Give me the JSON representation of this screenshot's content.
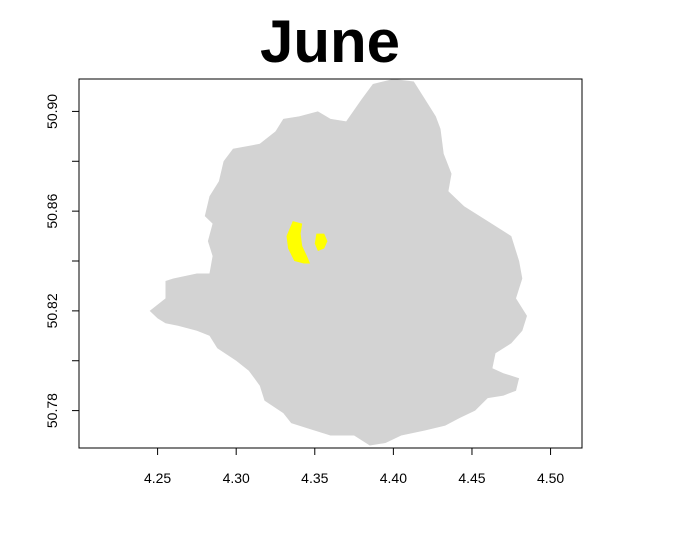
{
  "title": "June",
  "colors": {
    "background": "#ffffff",
    "region_fill": "#d3d3d3",
    "highlight_fill": "#ffff00",
    "axis": "#000000"
  },
  "chart_data": {
    "type": "map",
    "title": "June",
    "xlim": [
      4.2,
      4.52
    ],
    "ylim": [
      50.765,
      50.913
    ],
    "x_ticks": [
      {
        "value": 4.25,
        "label": "4.25"
      },
      {
        "value": 4.3,
        "label": "4.30"
      },
      {
        "value": 4.35,
        "label": "4.35"
      },
      {
        "value": 4.4,
        "label": "4.40"
      },
      {
        "value": 4.45,
        "label": "4.45"
      },
      {
        "value": 4.5,
        "label": "4.50"
      }
    ],
    "y_ticks": [
      {
        "value": 50.78,
        "label": "50.78"
      },
      {
        "value": 50.8,
        "label": ""
      },
      {
        "value": 50.82,
        "label": "50.82"
      },
      {
        "value": 50.84,
        "label": ""
      },
      {
        "value": 50.86,
        "label": "50.86"
      },
      {
        "value": 50.88,
        "label": ""
      },
      {
        "value": 50.9,
        "label": "50.90"
      }
    ],
    "layers": [
      {
        "name": "region",
        "color": "#d3d3d3",
        "coords": [
          [
            4.245,
            50.82
          ],
          [
            4.255,
            50.825
          ],
          [
            4.255,
            50.832
          ],
          [
            4.26,
            50.833
          ],
          [
            4.275,
            50.835
          ],
          [
            4.283,
            50.835
          ],
          [
            4.285,
            50.842
          ],
          [
            4.282,
            50.848
          ],
          [
            4.285,
            50.855
          ],
          [
            4.28,
            50.858
          ],
          [
            4.283,
            50.866
          ],
          [
            4.289,
            50.872
          ],
          [
            4.292,
            50.88
          ],
          [
            4.298,
            50.885
          ],
          [
            4.315,
            50.887
          ],
          [
            4.325,
            50.892
          ],
          [
            4.33,
            50.897
          ],
          [
            4.34,
            50.898
          ],
          [
            4.352,
            50.9
          ],
          [
            4.36,
            50.897
          ],
          [
            4.37,
            50.896
          ],
          [
            4.38,
            50.905
          ],
          [
            4.387,
            50.911
          ],
          [
            4.4,
            50.913
          ],
          [
            4.413,
            50.912
          ],
          [
            4.42,
            50.905
          ],
          [
            4.427,
            50.898
          ],
          [
            4.43,
            50.893
          ],
          [
            4.432,
            50.883
          ],
          [
            4.437,
            50.875
          ],
          [
            4.435,
            50.868
          ],
          [
            4.445,
            50.862
          ],
          [
            4.46,
            50.856
          ],
          [
            4.475,
            50.85
          ],
          [
            4.48,
            50.84
          ],
          [
            4.482,
            50.833
          ],
          [
            4.478,
            50.825
          ],
          [
            4.485,
            50.818
          ],
          [
            4.482,
            50.812
          ],
          [
            4.475,
            50.807
          ],
          [
            4.465,
            50.803
          ],
          [
            4.463,
            50.797
          ],
          [
            4.47,
            50.795
          ],
          [
            4.48,
            50.793
          ],
          [
            4.478,
            50.788
          ],
          [
            4.47,
            50.786
          ],
          [
            4.46,
            50.785
          ],
          [
            4.452,
            50.78
          ],
          [
            4.442,
            50.777
          ],
          [
            4.433,
            50.774
          ],
          [
            4.42,
            50.772
          ],
          [
            4.405,
            50.77
          ],
          [
            4.395,
            50.767
          ],
          [
            4.385,
            50.766
          ],
          [
            4.375,
            50.77
          ],
          [
            4.36,
            50.77
          ],
          [
            4.345,
            50.773
          ],
          [
            4.335,
            50.775
          ],
          [
            4.33,
            50.779
          ],
          [
            4.318,
            50.784
          ],
          [
            4.315,
            50.79
          ],
          [
            4.308,
            50.796
          ],
          [
            4.3,
            50.8
          ],
          [
            4.288,
            50.805
          ],
          [
            4.283,
            50.81
          ],
          [
            4.275,
            50.812
          ],
          [
            4.263,
            50.814
          ],
          [
            4.255,
            50.815
          ],
          [
            4.25,
            50.817
          ]
        ]
      },
      {
        "name": "highlight-west",
        "color": "#ffff00",
        "coords": [
          [
            4.336,
            50.856
          ],
          [
            4.342,
            50.855
          ],
          [
            4.341,
            50.851
          ],
          [
            4.342,
            50.846
          ],
          [
            4.345,
            50.842
          ],
          [
            4.347,
            50.839
          ],
          [
            4.343,
            50.839
          ],
          [
            4.337,
            50.84
          ],
          [
            4.333,
            50.845
          ],
          [
            4.332,
            50.85
          ]
        ]
      },
      {
        "name": "highlight-east",
        "color": "#ffff00",
        "coords": [
          [
            4.351,
            50.851
          ],
          [
            4.356,
            50.851
          ],
          [
            4.358,
            50.848
          ],
          [
            4.356,
            50.845
          ],
          [
            4.352,
            50.844
          ],
          [
            4.35,
            50.847
          ]
        ]
      }
    ]
  }
}
